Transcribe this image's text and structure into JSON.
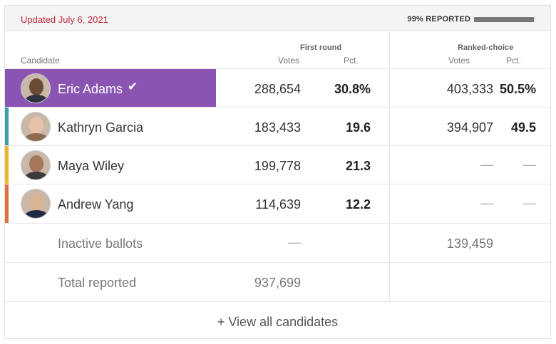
{
  "topbar": {
    "updated": "Updated July 6, 2021",
    "reported_label": "99% REPORTED",
    "reported_fraction": 0.99
  },
  "headers": {
    "candidate": "Candidate",
    "first_round": "First round",
    "ranked_choice": "Ranked-choice",
    "votes": "Votes",
    "pct": "Pct."
  },
  "candidates": [
    {
      "name": "Eric Adams",
      "fr_votes": "288,654",
      "fr_pct": "30.8%",
      "rc_votes": "403,333",
      "rc_pct": "50.5%",
      "color": "#8a55b2",
      "winner": true,
      "check": "✔"
    },
    {
      "name": "Kathryn Garcia",
      "fr_votes": "183,433",
      "fr_pct": "19.6",
      "rc_votes": "394,907",
      "rc_pct": "49.5",
      "color": "#3a9fa6"
    },
    {
      "name": "Maya Wiley",
      "fr_votes": "199,778",
      "fr_pct": "21.3",
      "rc_votes": "—",
      "rc_pct": "—",
      "color": "#f0b429"
    },
    {
      "name": "Andrew Yang",
      "fr_votes": "114,639",
      "fr_pct": "12.2",
      "rc_votes": "—",
      "rc_pct": "—",
      "color": "#e0703e"
    }
  ],
  "inactive": {
    "label": "Inactive ballots",
    "fr_votes": "—",
    "rc_votes": "139,459"
  },
  "total": {
    "label": "Total reported",
    "fr_votes": "937,699"
  },
  "footer": {
    "link": "+ View all candidates"
  }
}
